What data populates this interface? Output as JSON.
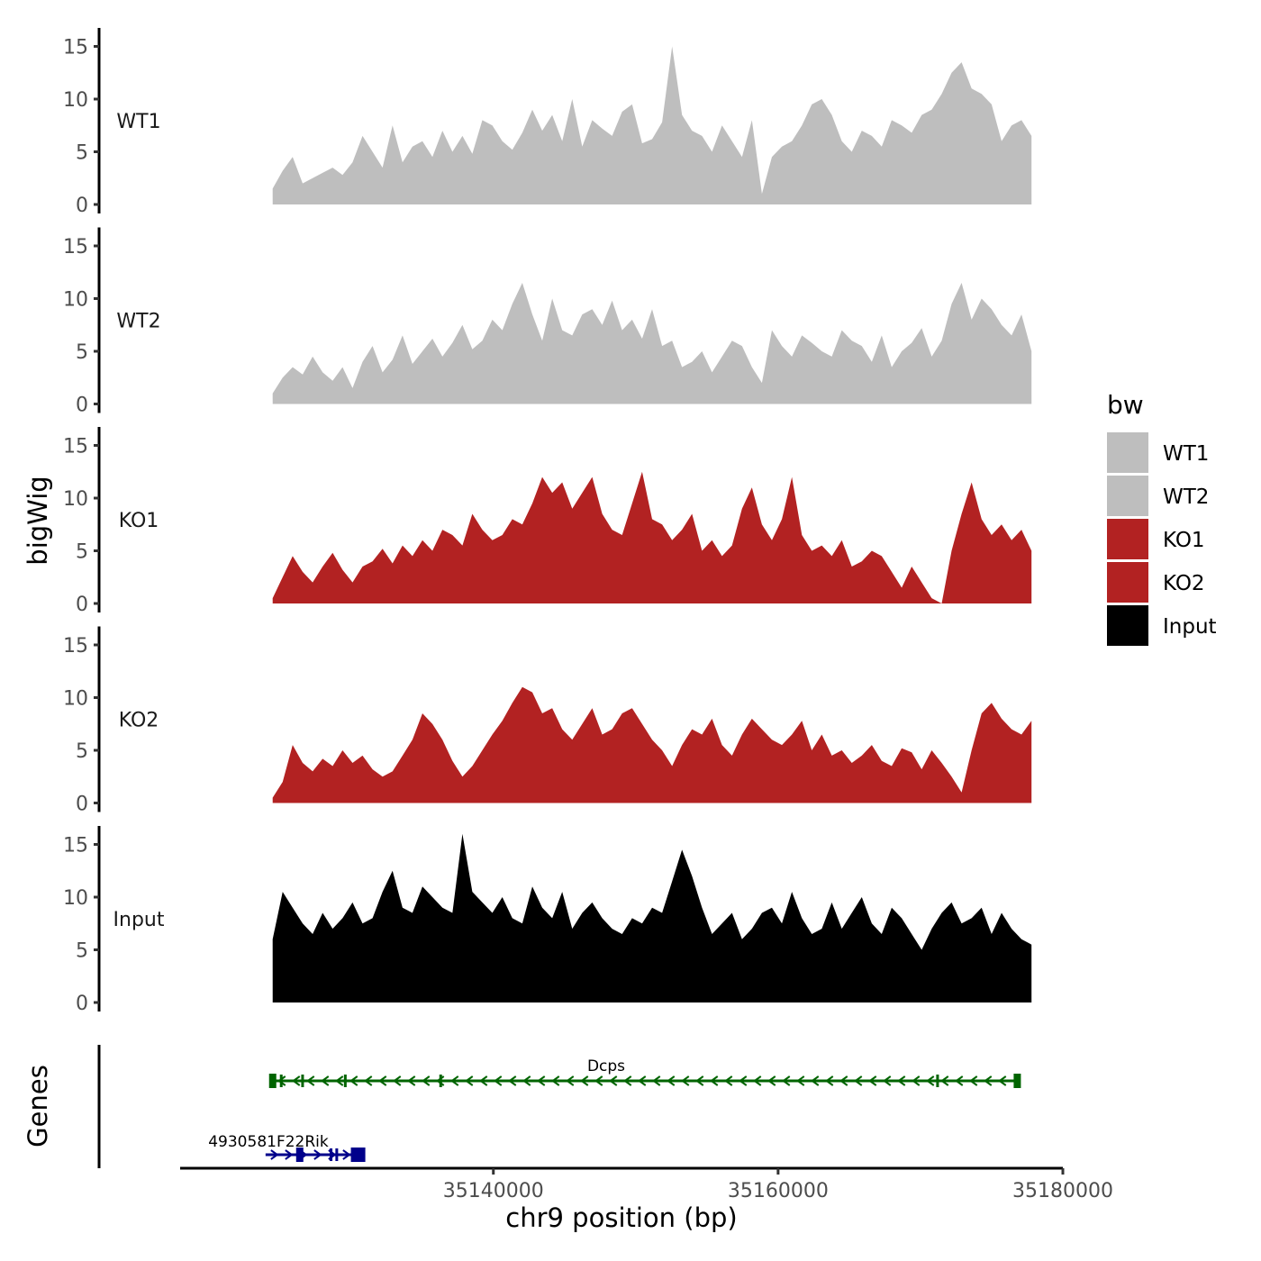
{
  "chart_data": {
    "type": "area",
    "chromosome": "chr9",
    "x_range_bp": [
      35124500,
      35177800
    ],
    "xlim": [
      35118000,
      35180000
    ],
    "ylim": [
      0,
      16
    ],
    "yticks": [
      0,
      5,
      10,
      15
    ],
    "xticks": [
      35140000,
      35160000,
      35180000
    ],
    "ylabel": "bigWig",
    "genes_label": "Genes",
    "xlabel": "chr9 position (bp)",
    "legend": {
      "title": "bw",
      "entries": [
        {
          "label": "WT1",
          "color": "#bebebe"
        },
        {
          "label": "WT2",
          "color": "#bebebe"
        },
        {
          "label": "KO1",
          "color": "#b22222"
        },
        {
          "label": "KO2",
          "color": "#b22222"
        },
        {
          "label": "Input",
          "color": "#000000"
        }
      ]
    },
    "tracks": [
      {
        "name": "WT1",
        "color": "#bebebe",
        "values": [
          1.5,
          3.2,
          4.5,
          2.0,
          2.5,
          3.0,
          3.5,
          2.8,
          4.0,
          6.5,
          5.0,
          3.5,
          7.5,
          4.0,
          5.5,
          6.0,
          4.5,
          7.0,
          5.0,
          6.5,
          4.8,
          8.0,
          7.5,
          6.0,
          5.2,
          6.8,
          9.0,
          7.0,
          8.5,
          6.0,
          10.0,
          5.5,
          8.0,
          7.2,
          6.5,
          8.8,
          9.5,
          5.8,
          6.2,
          7.8,
          15.0,
          8.5,
          7.0,
          6.5,
          5.0,
          7.5,
          6.0,
          4.5,
          8.0,
          1.0,
          4.5,
          5.5,
          6.0,
          7.5,
          9.5,
          10.0,
          8.5,
          6.0,
          5.0,
          7.0,
          6.5,
          5.5,
          8.0,
          7.5,
          6.8,
          8.5,
          9.0,
          10.5,
          12.5,
          13.5,
          11.0,
          10.5,
          9.5,
          6.0,
          7.5,
          8.0,
          6.5
        ]
      },
      {
        "name": "WT2",
        "color": "#bebebe",
        "values": [
          1.0,
          2.5,
          3.5,
          2.8,
          4.5,
          3.0,
          2.2,
          3.5,
          1.5,
          4.0,
          5.5,
          3.0,
          4.2,
          6.5,
          3.8,
          5.0,
          6.2,
          4.5,
          5.8,
          7.5,
          5.2,
          6.0,
          8.0,
          7.0,
          9.5,
          11.5,
          8.5,
          6.0,
          10.0,
          7.0,
          6.5,
          8.5,
          9.0,
          7.5,
          9.8,
          7.0,
          8.0,
          6.2,
          9.0,
          5.5,
          6.0,
          3.5,
          4.0,
          5.0,
          3.0,
          4.5,
          6.0,
          5.5,
          3.5,
          2.0,
          7.0,
          5.5,
          4.5,
          6.5,
          5.8,
          5.0,
          4.5,
          7.0,
          6.0,
          5.5,
          4.0,
          6.5,
          3.5,
          5.0,
          5.8,
          7.2,
          4.5,
          6.0,
          9.5,
          11.5,
          8.0,
          10.0,
          9.0,
          7.5,
          6.5,
          8.5,
          5.0
        ]
      },
      {
        "name": "KO1",
        "color": "#b22222",
        "values": [
          0.5,
          2.5,
          4.5,
          3.0,
          2.0,
          3.5,
          4.8,
          3.2,
          2.0,
          3.5,
          4.0,
          5.2,
          3.8,
          5.5,
          4.5,
          6.0,
          5.0,
          7.0,
          6.5,
          5.5,
          8.5,
          7.0,
          6.0,
          6.5,
          8.0,
          7.5,
          9.5,
          12.0,
          10.5,
          11.5,
          9.0,
          10.5,
          12.0,
          8.5,
          7.0,
          6.5,
          9.5,
          12.5,
          8.0,
          7.5,
          6.0,
          7.0,
          8.5,
          5.0,
          6.0,
          4.5,
          5.5,
          9.0,
          11.0,
          7.5,
          6.0,
          8.0,
          12.0,
          6.5,
          5.0,
          5.5,
          4.5,
          6.0,
          3.5,
          4.0,
          5.0,
          4.5,
          3.0,
          1.5,
          3.5,
          2.0,
          0.5,
          0.0,
          5.0,
          8.5,
          11.5,
          8.0,
          6.5,
          7.5,
          6.0,
          7.0,
          5.0
        ]
      },
      {
        "name": "KO2",
        "color": "#b22222",
        "values": [
          0.5,
          2.0,
          5.5,
          3.8,
          3.0,
          4.2,
          3.5,
          5.0,
          3.8,
          4.5,
          3.2,
          2.5,
          3.0,
          4.5,
          6.0,
          8.5,
          7.5,
          6.0,
          4.0,
          2.5,
          3.5,
          5.0,
          6.5,
          7.8,
          9.5,
          11.0,
          10.5,
          8.5,
          9.0,
          7.0,
          6.0,
          7.5,
          9.0,
          6.5,
          7.0,
          8.5,
          9.0,
          7.5,
          6.0,
          5.0,
          3.5,
          5.5,
          7.0,
          6.5,
          8.0,
          5.5,
          4.5,
          6.5,
          8.0,
          7.0,
          6.0,
          5.5,
          6.5,
          7.8,
          5.0,
          6.5,
          4.5,
          5.0,
          3.8,
          4.5,
          5.5,
          4.0,
          3.5,
          5.2,
          4.8,
          3.2,
          5.0,
          3.8,
          2.5,
          1.0,
          5.0,
          8.5,
          9.5,
          8.0,
          7.0,
          6.5,
          7.8
        ]
      },
      {
        "name": "Input",
        "color": "#000000",
        "values": [
          6.0,
          10.5,
          9.0,
          7.5,
          6.5,
          8.5,
          7.0,
          8.0,
          9.5,
          7.5,
          8.0,
          10.5,
          12.5,
          9.0,
          8.5,
          11.0,
          10.0,
          9.0,
          8.5,
          16.0,
          10.5,
          9.5,
          8.5,
          10.0,
          8.0,
          7.5,
          11.0,
          9.0,
          8.0,
          10.5,
          7.0,
          8.5,
          9.5,
          8.0,
          7.0,
          6.5,
          8.0,
          7.5,
          9.0,
          8.5,
          11.5,
          14.5,
          12.0,
          9.0,
          6.5,
          7.5,
          8.5,
          6.0,
          7.0,
          8.5,
          9.0,
          7.5,
          10.5,
          8.0,
          6.5,
          7.0,
          9.5,
          7.0,
          8.5,
          10.0,
          7.5,
          6.5,
          9.0,
          8.0,
          6.5,
          5.0,
          7.0,
          8.5,
          9.5,
          7.5,
          8.0,
          9.0,
          6.5,
          8.5,
          7.0,
          6.0,
          5.5
        ]
      }
    ],
    "genes": [
      {
        "name": "Dcps",
        "start": 35124500,
        "end": 35176800,
        "strand": "-",
        "color": "#006400",
        "exons_bp": [
          35124500,
          35125100,
          35126600,
          35129600,
          35136300,
          35171200,
          35176800
        ]
      },
      {
        "name": "4930581F22Rik",
        "start": 35124000,
        "end": 35130800,
        "strand": "+",
        "color": "#00008b",
        "exons_bp": [
          35126400,
          35128600,
          35129000,
          35130500
        ]
      }
    ]
  }
}
